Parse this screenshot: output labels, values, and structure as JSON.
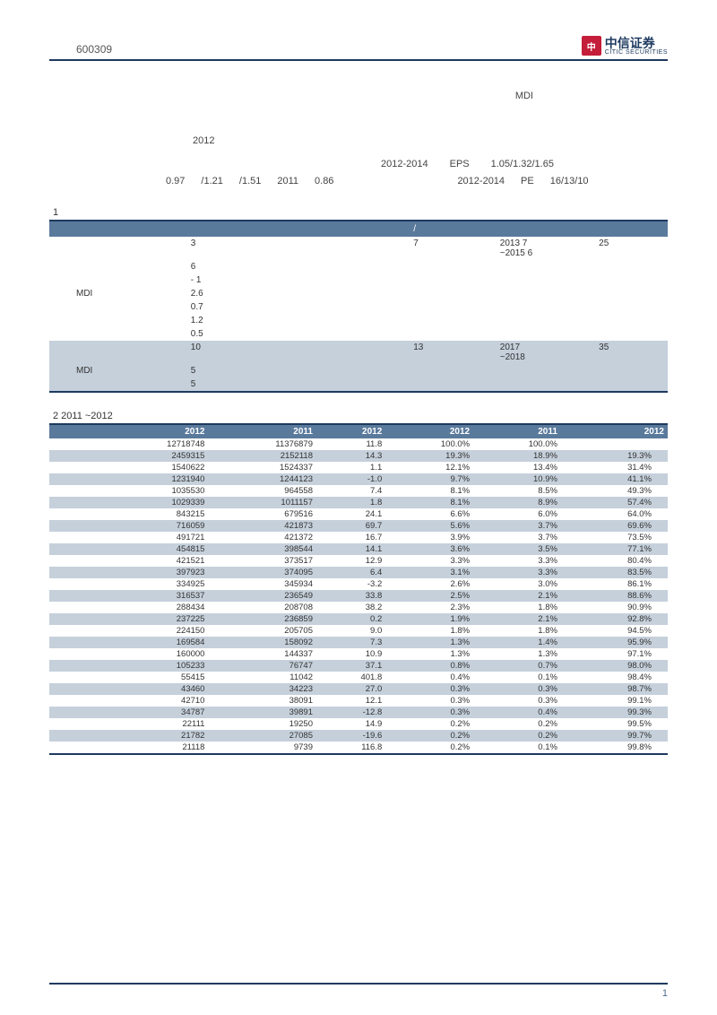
{
  "header": {
    "stock_code": "600309",
    "logo_cn": "中信证券",
    "logo_en": "CITIC SECURITIES",
    "logo_badge": "中",
    "logo_badge_bg": "#c41e3a"
  },
  "text_block": {
    "mdi": "MDI",
    "tokens_row1": [
      "2012"
    ],
    "tokens_row2": [
      "2012-2014",
      "EPS",
      "1.05/1.32/1.65"
    ],
    "tokens_row3": [
      "0.97",
      "/1.21",
      "/1.51",
      "2011",
      "0.86",
      "2012-2014",
      "PE",
      "16/13/10"
    ]
  },
  "table1": {
    "caption": "1",
    "header_bg": "#5a7a9c",
    "alt_bg": "#c5d0db",
    "header_indicator": "/",
    "rows": [
      {
        "c1": "",
        "c2": "3",
        "c3": "",
        "c4": "7",
        "c5": "2013 7\n~2015 6",
        "c6": "25",
        "alt": false
      },
      {
        "c1": "",
        "c2": "6",
        "c3": "",
        "c4": "",
        "c5": "",
        "c6": "",
        "alt": false
      },
      {
        "c1": "",
        "c2": "-        1",
        "c3": "",
        "c4": "",
        "c5": "",
        "c6": "",
        "alt": false
      },
      {
        "c1": "MDI",
        "c2": "2.6",
        "c3": "",
        "c4": "",
        "c5": "",
        "c6": "",
        "alt": false
      },
      {
        "c1": "",
        "c2": "0.7",
        "c3": "",
        "c4": "",
        "c5": "",
        "c6": "",
        "alt": false
      },
      {
        "c1": "",
        "c2": "1.2",
        "c3": "",
        "c4": "",
        "c5": "",
        "c6": "",
        "alt": false
      },
      {
        "c1": "",
        "c2": "0.5",
        "c3": "",
        "c4": "",
        "c5": "",
        "c6": "",
        "alt": false
      },
      {
        "c1": "",
        "c2": "10",
        "c3": "",
        "c4": "13",
        "c5": "2017\n~2018",
        "c6": "35",
        "alt": true
      },
      {
        "c1": "MDI",
        "c2": "5",
        "c3": "",
        "c4": "",
        "c5": "",
        "c6": "",
        "alt": true
      },
      {
        "c1": "",
        "c2": "5",
        "c3": "",
        "c4": "",
        "c5": "",
        "c6": "",
        "alt": true
      }
    ]
  },
  "table2": {
    "caption": "2 2011     ~2012",
    "header_bg": "#5a7a9c",
    "stripe_bg": "#c5d0db",
    "columns": [
      "",
      "2012",
      "2011",
      "2012",
      "2012",
      "2011",
      "2012"
    ],
    "rows": [
      [
        "",
        "12718748",
        "11376879",
        "11.8",
        "100.0%",
        "100.0%",
        ""
      ],
      [
        "",
        "2459315",
        "2152118",
        "14.3",
        "19.3%",
        "18.9%",
        "19.3%"
      ],
      [
        "",
        "1540622",
        "1524337",
        "1.1",
        "12.1%",
        "13.4%",
        "31.4%"
      ],
      [
        "",
        "1231940",
        "1244123",
        "-1.0",
        "9.7%",
        "10.9%",
        "41.1%"
      ],
      [
        "",
        "1035530",
        "964558",
        "7.4",
        "8.1%",
        "8.5%",
        "49.3%"
      ],
      [
        "",
        "1029339",
        "1011157",
        "1.8",
        "8.1%",
        "8.9%",
        "57.4%"
      ],
      [
        "",
        "843215",
        "679516",
        "24.1",
        "6.6%",
        "6.0%",
        "64.0%"
      ],
      [
        "",
        "716059",
        "421873",
        "69.7",
        "5.6%",
        "3.7%",
        "69.6%"
      ],
      [
        "",
        "491721",
        "421372",
        "16.7",
        "3.9%",
        "3.7%",
        "73.5%"
      ],
      [
        "",
        "454815",
        "398544",
        "14.1",
        "3.6%",
        "3.5%",
        "77.1%"
      ],
      [
        "",
        "421521",
        "373517",
        "12.9",
        "3.3%",
        "3.3%",
        "80.4%"
      ],
      [
        "",
        "397923",
        "374095",
        "6.4",
        "3.1%",
        "3.3%",
        "83.5%"
      ],
      [
        "",
        "334925",
        "345934",
        "-3.2",
        "2.6%",
        "3.0%",
        "86.1%"
      ],
      [
        "",
        "316537",
        "236549",
        "33.8",
        "2.5%",
        "2.1%",
        "88.6%"
      ],
      [
        "",
        "288434",
        "208708",
        "38.2",
        "2.3%",
        "1.8%",
        "90.9%"
      ],
      [
        "",
        "237225",
        "236859",
        "0.2",
        "1.9%",
        "2.1%",
        "92.8%"
      ],
      [
        "",
        "224150",
        "205705",
        "9.0",
        "1.8%",
        "1.8%",
        "94.5%"
      ],
      [
        "",
        "169584",
        "158092",
        "7.3",
        "1.3%",
        "1.4%",
        "95.9%"
      ],
      [
        "",
        "160000",
        "144337",
        "10.9",
        "1.3%",
        "1.3%",
        "97.1%"
      ],
      [
        "",
        "105233",
        "76747",
        "37.1",
        "0.8%",
        "0.7%",
        "98.0%"
      ],
      [
        "",
        "55415",
        "11042",
        "401.8",
        "0.4%",
        "0.1%",
        "98.4%"
      ],
      [
        "",
        "43460",
        "34223",
        "27.0",
        "0.3%",
        "0.3%",
        "98.7%"
      ],
      [
        "",
        "42710",
        "38091",
        "12.1",
        "0.3%",
        "0.3%",
        "99.1%"
      ],
      [
        "",
        "34787",
        "39891",
        "-12.8",
        "0.3%",
        "0.4%",
        "99.3%"
      ],
      [
        "",
        "22111",
        "19250",
        "14.9",
        "0.2%",
        "0.2%",
        "99.5%"
      ],
      [
        "",
        "21782",
        "27085",
        "-19.6",
        "0.2%",
        "0.2%",
        "99.7%"
      ],
      [
        "",
        "21118",
        "9739",
        "116.8",
        "0.2%",
        "0.1%",
        "99.8%"
      ]
    ]
  },
  "footer": {
    "page_number": "1"
  }
}
